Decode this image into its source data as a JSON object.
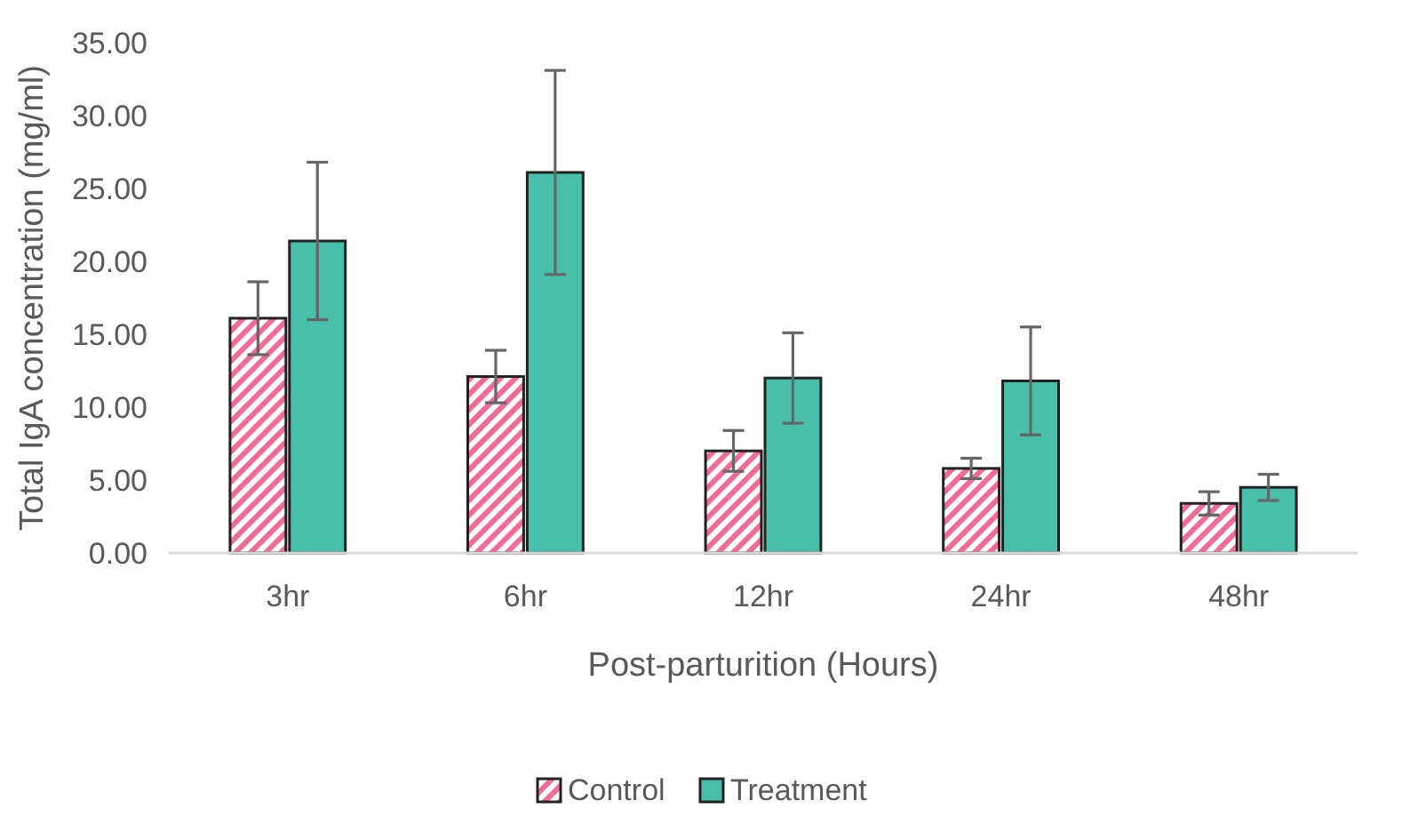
{
  "chart_data": {
    "type": "bar",
    "xlabel": "Post-parturition (Hours)",
    "ylabel": "Total IgA concentration (mg/ml)",
    "categories": [
      "3hr",
      "6hr",
      "12hr",
      "24hr",
      "48hr"
    ],
    "series": [
      {
        "name": "Control",
        "color": "#f06b98",
        "values": [
          16.1,
          12.1,
          7.0,
          5.8,
          3.4
        ],
        "errors": [
          2.5,
          1.8,
          1.4,
          0.7,
          0.8
        ]
      },
      {
        "name": "Treatment",
        "color": "#48bfaa",
        "values": [
          21.4,
          26.1,
          12.0,
          11.8,
          4.5
        ],
        "errors": [
          5.4,
          7.0,
          3.1,
          3.7,
          0.9
        ]
      }
    ],
    "ylim": [
      0,
      35
    ],
    "yticks": [
      {
        "value": 0,
        "label": "0.00"
      },
      {
        "value": 5,
        "label": "5.00"
      },
      {
        "value": 10,
        "label": "10.00"
      },
      {
        "value": 15,
        "label": "15.00"
      },
      {
        "value": 20,
        "label": "20.00"
      },
      {
        "value": 25,
        "label": "25.00"
      },
      {
        "value": 30,
        "label": "30.00"
      },
      {
        "value": 35,
        "label": "35.00"
      }
    ],
    "grid": false,
    "legend": "bottom"
  }
}
